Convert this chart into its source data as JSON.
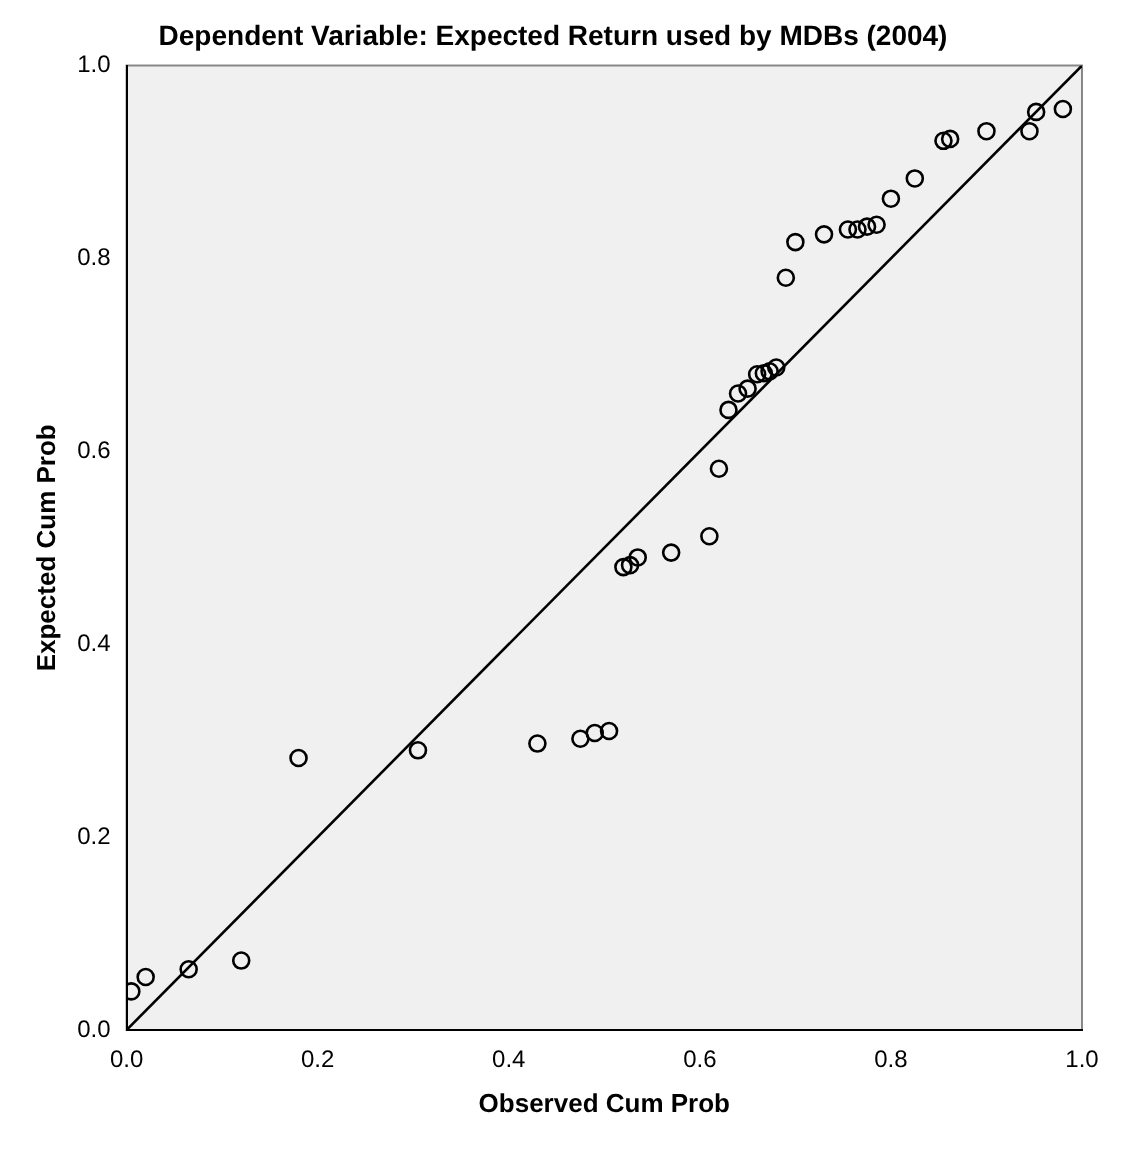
{
  "chart_data": {
    "type": "scatter",
    "title": "Dependent Variable: Expected Return used by MDBs (2004)",
    "xlabel": "Observed Cum Prob",
    "ylabel": "Expected Cum Prob",
    "xlim": [
      0,
      1
    ],
    "ylim": [
      0,
      1
    ],
    "xticks": [
      {
        "value": 0,
        "label": "0.0"
      },
      {
        "value": 0.2,
        "label": "0.2"
      },
      {
        "value": 0.4,
        "label": "0.4"
      },
      {
        "value": 0.6,
        "label": "0.6"
      },
      {
        "value": 0.8,
        "label": "0.8"
      },
      {
        "value": 1,
        "label": "1.0"
      }
    ],
    "yticks": [
      {
        "value": 0,
        "label": "0.0"
      },
      {
        "value": 0.2,
        "label": "0.2"
      },
      {
        "value": 0.4,
        "label": "0.4"
      },
      {
        "value": 0.6,
        "label": "0.6"
      },
      {
        "value": 0.8,
        "label": "0.8"
      },
      {
        "value": 1,
        "label": "1.0"
      }
    ],
    "grid": false,
    "legend": false,
    "marker": "circle",
    "series": [
      {
        "color": "#000000",
        "x": [
          0.005,
          0.02,
          0.065,
          0.12,
          0.18,
          0.305,
          0.43,
          0.475,
          0.49,
          0.505,
          0.52,
          0.527,
          0.535,
          0.57,
          0.61,
          0.62,
          0.63,
          0.64,
          0.65,
          0.66,
          0.667,
          0.673,
          0.68,
          0.69,
          0.7,
          0.73,
          0.755,
          0.765,
          0.775,
          0.785,
          0.8,
          0.825,
          0.855,
          0.862,
          0.9,
          0.945,
          0.952,
          0.98
        ],
        "values": [
          0.04,
          0.055,
          0.063,
          0.072,
          0.282,
          0.29,
          0.297,
          0.302,
          0.308,
          0.31,
          0.48,
          0.482,
          0.49,
          0.495,
          0.512,
          0.582,
          0.643,
          0.66,
          0.665,
          0.68,
          0.681,
          0.683,
          0.687,
          0.78,
          0.817,
          0.825,
          0.83,
          0.83,
          0.833,
          0.835,
          0.862,
          0.883,
          0.922,
          0.924,
          0.932,
          0.932,
          0.952,
          0.955
        ]
      },
      {
        "type": "line",
        "color": "#000000",
        "marker": "none",
        "x": [
          0,
          1
        ],
        "values": [
          0,
          1
        ]
      }
    ]
  }
}
